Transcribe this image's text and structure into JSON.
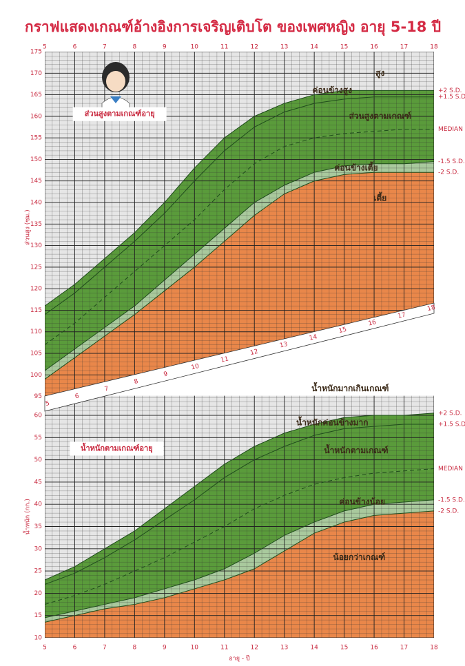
{
  "title": "กราฟแสดงเกณฑ์อ้างอิงการเจริญเติบโต ของเพศหญิง อายุ 5-18 ปี",
  "chart_data": [
    {
      "type": "area",
      "title": "ส่วนสูงตามเกณฑ์อายุ",
      "ylabel": "ส่วนสูง (ซม.)",
      "x": [
        5,
        6,
        7,
        8,
        9,
        10,
        11,
        12,
        13,
        14,
        15,
        16,
        17,
        18
      ],
      "xlim": [
        5,
        18
      ],
      "xticks": [
        5,
        6,
        7,
        8,
        9,
        10,
        11,
        12,
        13,
        14,
        15,
        16,
        17,
        18
      ],
      "ylim": [
        93.5,
        175
      ],
      "yticks": [
        95,
        100,
        105,
        110,
        115,
        120,
        125,
        130,
        135,
        140,
        145,
        150,
        155,
        160,
        165,
        170,
        175
      ],
      "grid": true,
      "minor_step": 1,
      "x_minor_step": 0.25,
      "background": "#e6e6e6",
      "series": [
        {
          "name": "+2 S.D.",
          "color": "#5a9b3b",
          "values": [
            116,
            121,
            127,
            133,
            140,
            148,
            155,
            160,
            163,
            165,
            166,
            166,
            166,
            166
          ]
        },
        {
          "name": "+1.5 S.D.",
          "color": "#5a9b3b",
          "values": [
            114,
            119,
            125,
            131,
            137.5,
            145,
            152,
            157.5,
            161,
            163,
            164,
            164.5,
            164.5,
            164.5
          ]
        },
        {
          "name": "MEDIAN",
          "color": "#5a9b3b",
          "dashed": true,
          "values": [
            107,
            112,
            118,
            124,
            130,
            136,
            143,
            149,
            153,
            155,
            156,
            156.5,
            157,
            157
          ]
        },
        {
          "name": "-1.5 S.D.",
          "color": "#a9c99d",
          "values": [
            101,
            106,
            111,
            116,
            122,
            128,
            134,
            140,
            144,
            147,
            148.5,
            149,
            149,
            149.5
          ]
        },
        {
          "name": "-2 S.D.",
          "color": "#e9874a",
          "values": [
            99,
            104,
            109,
            114,
            119.5,
            125,
            131,
            137,
            142,
            145,
            146.5,
            147,
            147,
            147
          ]
        }
      ],
      "annotations": [
        {
          "text": "สูง",
          "x": 16.2,
          "y": 170
        },
        {
          "text": "ค่อนข้างสูง",
          "x": 14.6,
          "y": 166
        },
        {
          "text": "ส่วนสูงตามเกณฑ์",
          "x": 16.2,
          "y": 160
        },
        {
          "text": "ค่อนข้างเตี้ย",
          "x": 15.4,
          "y": 148
        },
        {
          "text": "เตี้ย",
          "x": 16.2,
          "y": 141
        }
      ]
    },
    {
      "type": "area",
      "title": "น้ำหนักตามเกณฑ์อายุ",
      "ylabel": "น้ำหนัก (กก.)",
      "xlabel": "อายุ - ปี",
      "x": [
        5,
        6,
        7,
        8,
        9,
        10,
        11,
        12,
        13,
        14,
        15,
        16,
        17,
        18
      ],
      "xlim": [
        5,
        18
      ],
      "xticks": [
        5,
        6,
        7,
        8,
        9,
        10,
        11,
        12,
        13,
        14,
        15,
        16,
        17,
        18
      ],
      "ylim": [
        10,
        64.4
      ],
      "yticks": [
        10,
        15,
        20,
        25,
        30,
        35,
        40,
        45,
        50,
        55,
        60
      ],
      "grid": true,
      "minor_step": 1,
      "x_minor_step": 0.25,
      "background": "#e6e6e6",
      "series": [
        {
          "name": "+2 S.D.",
          "color": "#5a9b3b",
          "values": [
            23,
            26,
            30,
            34,
            39,
            44,
            49,
            53,
            56,
            58,
            59.5,
            60,
            60,
            60.5
          ]
        },
        {
          "name": "+1.5 S.D.",
          "color": "#5a9b3b",
          "values": [
            22,
            24.5,
            28,
            32,
            36.5,
            41,
            46,
            50,
            53,
            55.5,
            57,
            57.5,
            58,
            58
          ]
        },
        {
          "name": "MEDIAN",
          "color": "#5a9b3b",
          "dashed": true,
          "values": [
            17.5,
            19.5,
            22,
            25,
            28,
            31.5,
            35,
            39,
            42,
            44.5,
            46,
            47,
            47.5,
            48
          ]
        },
        {
          "name": "-1.5 S.D.",
          "color": "#a9c99d",
          "values": [
            14.5,
            16,
            17.5,
            19,
            21,
            23,
            25.5,
            29,
            33,
            36,
            38.5,
            40,
            40.5,
            41
          ]
        },
        {
          "name": "-2 S.D.",
          "color": "#e9874a",
          "values": [
            13.5,
            15,
            16.5,
            17.5,
            19,
            21,
            23,
            25.5,
            29.5,
            33.5,
            36,
            37.5,
            38,
            38.5
          ]
        }
      ],
      "annotations": [
        {
          "text": "น้ำหนักมากเกินเกณฑ์",
          "x": 15.2,
          "y": 66
        },
        {
          "text": "น้ำหนักค่อนข้างมาก",
          "x": 14.6,
          "y": 58.3
        },
        {
          "text": "น้ำหนักตามเกณฑ์",
          "x": 15.4,
          "y": 52
        },
        {
          "text": "ค่อนข้างน้อย",
          "x": 15.6,
          "y": 40.5
        },
        {
          "text": "น้อยกว่าเกณฑ์",
          "x": 15.5,
          "y": 28
        }
      ]
    }
  ]
}
